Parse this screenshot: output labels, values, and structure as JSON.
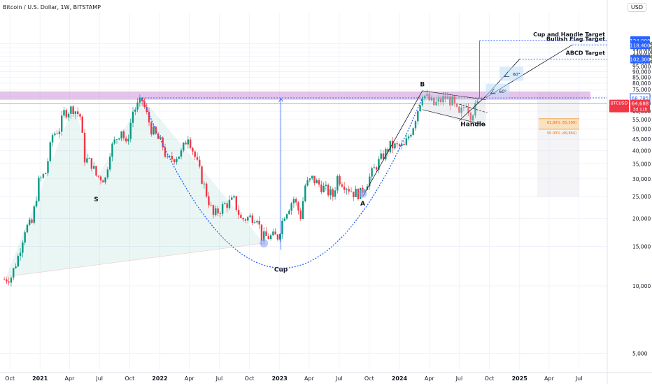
{
  "header": {
    "title": "Bitcoin / U.S. Dollar, 1W, BITSTAMP",
    "currency_label": "USD"
  },
  "colors": {
    "up": "#089981",
    "down": "#f23645",
    "accent_blue": "#2962ff",
    "zone_purple": "#ce93d8",
    "fib_orange": "#ffcc80",
    "price_line": "#f23645"
  },
  "chart_data": {
    "type": "candlestick",
    "symbol": "BTCUSD",
    "interval": "1W",
    "exchange": "BITSTAMP",
    "y_axis": {
      "scale": "log",
      "range": [
        4200,
        165000
      ],
      "ticks": [
        5000,
        10000,
        15000,
        20000,
        25000,
        30000,
        35000,
        40000,
        45000,
        50000,
        55000,
        60000,
        65000,
        70000,
        75000,
        80000,
        85000,
        90000,
        95000,
        100000,
        105000,
        110000,
        115000,
        120000
      ],
      "tick_labels": [
        "5,000",
        "10,000",
        "15,000",
        "20,000",
        "25,000",
        "30,000",
        "35,000",
        "40,000",
        "45,000",
        "50,000",
        "55,000",
        "60,000",
        "65,000",
        "70,000",
        "75,000",
        "80,000",
        "85,000",
        "90,000",
        "95,000",
        "100,000",
        "105,000",
        "110,000",
        "115,000",
        "120,000"
      ]
    },
    "x_axis": {
      "ticks": [
        "2020-10-01",
        "2021-01-01",
        "2021-04-01",
        "2021-07-01",
        "2021-10-01",
        "2022-01-01",
        "2022-04-01",
        "2022-07-01",
        "2022-10-01",
        "2023-01-01",
        "2023-04-01",
        "2023-07-01",
        "2023-10-01",
        "2024-01-01",
        "2024-04-01",
        "2024-07-01",
        "2024-10-01",
        "2025-01-01",
        "2025-04-01",
        "2025-07-01"
      ],
      "tick_labels": [
        "Oct",
        "2021",
        "Apr",
        "Jul",
        "Oct",
        "2022",
        "Apr",
        "Jul",
        "Oct",
        "2023",
        "Apr",
        "Jul",
        "Oct",
        "2024",
        "Apr",
        "Jul",
        "Oct",
        "2025",
        "Apr",
        "Jul"
      ]
    },
    "price_path": [
      [
        "2020-09-14",
        10700
      ],
      [
        "2020-10-05",
        11000
      ],
      [
        "2020-10-26",
        13500
      ],
      [
        "2020-11-16",
        18000
      ],
      [
        "2020-12-07",
        19000
      ],
      [
        "2020-12-28",
        29000
      ],
      [
        "2021-01-18",
        32000
      ],
      [
        "2021-02-08",
        47000
      ],
      [
        "2021-03-01",
        50000
      ],
      [
        "2021-03-15",
        59000
      ],
      [
        "2021-04-12",
        62000
      ],
      [
        "2021-05-03",
        57000
      ],
      [
        "2021-05-17",
        37000
      ],
      [
        "2021-06-07",
        35000
      ],
      [
        "2021-06-21",
        31000
      ],
      [
        "2021-07-19",
        30000
      ],
      [
        "2021-08-02",
        40000
      ],
      [
        "2021-09-06",
        50000
      ],
      [
        "2021-09-20",
        42000
      ],
      [
        "2021-10-11",
        60000
      ],
      [
        "2021-11-08",
        67000
      ],
      [
        "2021-12-06",
        50000
      ],
      [
        "2022-01-10",
        42000
      ],
      [
        "2022-01-24",
        36000
      ],
      [
        "2022-03-07",
        39000
      ],
      [
        "2022-03-28",
        47000
      ],
      [
        "2022-05-09",
        30000
      ],
      [
        "2022-06-13",
        20500
      ],
      [
        "2022-07-18",
        23000
      ],
      [
        "2022-08-15",
        24000
      ],
      [
        "2022-09-05",
        19800
      ],
      [
        "2022-10-24",
        20500
      ],
      [
        "2022-11-07",
        16500
      ],
      [
        "2022-12-26",
        16600
      ],
      [
        "2023-01-16",
        21000
      ],
      [
        "2023-02-13",
        24500
      ],
      [
        "2023-03-06",
        20500
      ],
      [
        "2023-03-20",
        28000
      ],
      [
        "2023-04-10",
        30000
      ],
      [
        "2023-06-12",
        25200
      ],
      [
        "2023-06-26",
        30500
      ],
      [
        "2023-08-14",
        26000
      ],
      [
        "2023-09-04",
        25800
      ],
      [
        "2023-10-23",
        34500
      ],
      [
        "2023-12-04",
        42000
      ],
      [
        "2024-01-15",
        41500
      ],
      [
        "2024-02-12",
        52000
      ],
      [
        "2024-03-11",
        72000
      ],
      [
        "2024-04-15",
        64000
      ],
      [
        "2024-05-20",
        69000
      ],
      [
        "2024-06-10",
        66000
      ],
      [
        "2024-07-01",
        57000
      ],
      [
        "2024-07-22",
        66000
      ],
      [
        "2024-08-05",
        58000
      ],
      [
        "2024-08-26",
        64688
      ]
    ],
    "current_price": 64688,
    "current_price_label": "64,688",
    "countdown_label": "3d 11h",
    "symbol_label": "BTCUSD",
    "resistance_level_label": "68,785",
    "resistance_level": 68785,
    "resistance_zone": [
      67500,
      73500
    ],
    "targets": [
      {
        "name": "Cup and Handle Target",
        "value": 124000,
        "label": "124,000"
      },
      {
        "name": "Bullish Flag Target",
        "value": 118400,
        "label": "118,400"
      },
      {
        "name": "ABCD Target",
        "value": 102300,
        "label": "102,300"
      }
    ],
    "pattern_labels": [
      {
        "text": "Cup",
        "date": "2023-01-05",
        "value": 11600
      },
      {
        "text": "Handle",
        "date": "2024-08-12",
        "value": 51500
      },
      {
        "text": "B",
        "date": "2024-03-11",
        "value": 77500
      },
      {
        "text": "A",
        "date": "2023-09-11",
        "value": 22800
      },
      {
        "text": "S",
        "date": "2021-06-21",
        "value": 23800
      }
    ],
    "fib_levels": [
      {
        "label": "61.80% (55,569)",
        "value": 55569
      },
      {
        "label": "50.00% (49,864)",
        "value": 49864
      }
    ],
    "angle_labels": [
      "60°",
      "60°"
    ]
  }
}
